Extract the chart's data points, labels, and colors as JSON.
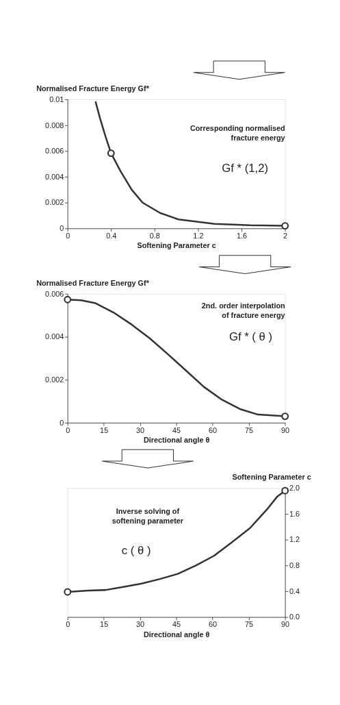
{
  "chart_data": [
    {
      "type": "line",
      "xlabel": "Softening Parameter c",
      "ylabel": "Normalised Fracture Energy   Gf*",
      "xlim": [
        0,
        2
      ],
      "ylim": [
        0,
        0.01
      ],
      "xticks": [
        0,
        0.4,
        0.8,
        1.2,
        1.6,
        2
      ],
      "yticks": [
        0,
        0.002,
        0.004,
        0.006,
        0.008,
        0.01
      ],
      "grid": false,
      "line_style": "solid",
      "marker": "none",
      "annotations": [
        "Corresponding normalised\nfracture energy",
        "Gf * (1,2)"
      ],
      "series": [
        {
          "color": "#333333",
          "x": [
            0.259,
            0.3,
            0.35,
            0.4,
            0.49,
            0.59,
            0.69,
            0.85,
            1.02,
            1.35,
            1.68,
            2.0
          ],
          "values": [
            0.00979,
            0.0085,
            0.0071,
            0.00583,
            0.0044,
            0.003,
            0.002,
            0.0012,
            0.0007,
            0.00035,
            0.00024,
            0.0002
          ]
        },
        {
          "type": "scatter",
          "color": "#333333",
          "marker": "circle",
          "x": [
            0.4,
            2
          ],
          "values": [
            0.00583,
            0.0002
          ]
        }
      ]
    },
    {
      "type": "line",
      "xlabel": "Directional angle  θ",
      "ylabel": "Normalised Fracture Energy   Gf*",
      "xlim": [
        0,
        90
      ],
      "ylim": [
        0,
        0.006
      ],
      "xticks": [
        0,
        15,
        30,
        45,
        60,
        75,
        90
      ],
      "yticks": [
        0,
        0.002,
        0.004,
        0.006
      ],
      "grid": false,
      "line_style": "solid",
      "marker": "none",
      "annotations": [
        "2nd. order interpolation\nof fracture energy",
        "Gf * ( θ )"
      ],
      "series": [
        {
          "color": "#333333",
          "x": [
            0,
            5.6,
            11.6,
            19,
            26.5,
            34,
            41.4,
            48.9,
            56.4,
            63.9,
            71.3,
            78.8,
            90
          ],
          "values": [
            0.00573,
            0.0057,
            0.00556,
            0.00513,
            0.00457,
            0.00393,
            0.0032,
            0.00244,
            0.00167,
            0.00107,
            0.00064,
            0.00038,
            0.0003
          ]
        },
        {
          "type": "scatter",
          "color": "#333333",
          "marker": "circle",
          "x": [
            0,
            90
          ],
          "values": [
            0.00573,
            0.0003
          ]
        }
      ]
    },
    {
      "type": "line",
      "xlabel": "Directional angle  θ",
      "y2label": "Softening Parameter c",
      "xlim": [
        0,
        90
      ],
      "y2lim": [
        0,
        2
      ],
      "xticks": [
        0,
        15,
        30,
        45,
        60,
        75,
        90
      ],
      "y2ticks": [
        {
          "value": 0,
          "label": "0.0"
        },
        0.4,
        0.8,
        1.2,
        1.6,
        {
          "value": 2,
          "label": "2.0"
        }
      ],
      "grid": false,
      "line_style": "solid",
      "marker": "none",
      "annotations": [
        "Inverse solving of\nsoftening parameter",
        "c ( θ )"
      ],
      "series": [
        {
          "axis": "y2",
          "color": "#333333",
          "x": [
            0,
            8.4,
            15.8,
            23.3,
            30.7,
            38.2,
            45.6,
            53.1,
            60.6,
            68,
            75.5,
            83,
            86.8,
            90
          ],
          "values": [
            0.39,
            0.41,
            0.42,
            0.47,
            0.52,
            0.59,
            0.67,
            0.8,
            0.95,
            1.16,
            1.38,
            1.69,
            1.87,
            1.96
          ]
        },
        {
          "type": "scatter",
          "axis": "y2",
          "color": "#333333",
          "marker": "circle",
          "x": [
            0,
            90
          ],
          "values": [
            0.39,
            1.96
          ]
        }
      ]
    }
  ]
}
